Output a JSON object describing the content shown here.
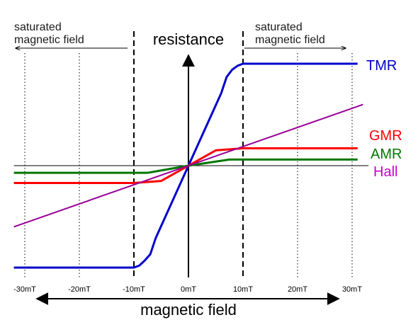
{
  "chart_data": {
    "type": "line",
    "ylabel": "resistance",
    "xlabel": "magnetic field",
    "x_ticks": [
      "-30mT",
      "-20mT",
      "-10mT",
      "0mT",
      "10mT",
      "20mT",
      "30mT"
    ],
    "x_tick_values": [
      -30,
      -20,
      -10,
      0,
      10,
      20,
      30
    ],
    "xlim": [
      -32,
      33
    ],
    "ylim": [
      -1.0,
      1.0
    ],
    "grid": "vertical dotted",
    "saturation_lines_at": [
      -10,
      10
    ],
    "annotations": {
      "left_line1": "saturated",
      "left_line2": "magnetic field",
      "right_line1": "saturated",
      "right_line2": "magnetic field"
    },
    "series": [
      {
        "name": "TMR",
        "color": "#0000cc",
        "x": [
          -32,
          -10,
          -9,
          -8,
          -7,
          -6,
          0,
          6,
          7,
          8,
          9,
          10,
          31
        ],
        "y": [
          -1.0,
          -1.0,
          -0.98,
          -0.93,
          -0.87,
          -0.71,
          0.0,
          0.71,
          0.87,
          0.94,
          0.98,
          1.0,
          1.0
        ]
      },
      {
        "name": "GMR",
        "color": "#ff0000",
        "x": [
          -32,
          -10,
          -5,
          0,
          5,
          10,
          31
        ],
        "y": [
          -0.17,
          -0.17,
          -0.15,
          0.0,
          0.15,
          0.17,
          0.17
        ]
      },
      {
        "name": "AMR",
        "color": "#007700",
        "x": [
          -32,
          -7.5,
          0,
          7.5,
          31
        ],
        "y": [
          -0.07,
          -0.07,
          0.0,
          0.06,
          0.06
        ]
      },
      {
        "name": "Hall",
        "color": "#990099",
        "x": [
          -32,
          32
        ],
        "y": [
          -0.6,
          0.6
        ]
      }
    ]
  }
}
